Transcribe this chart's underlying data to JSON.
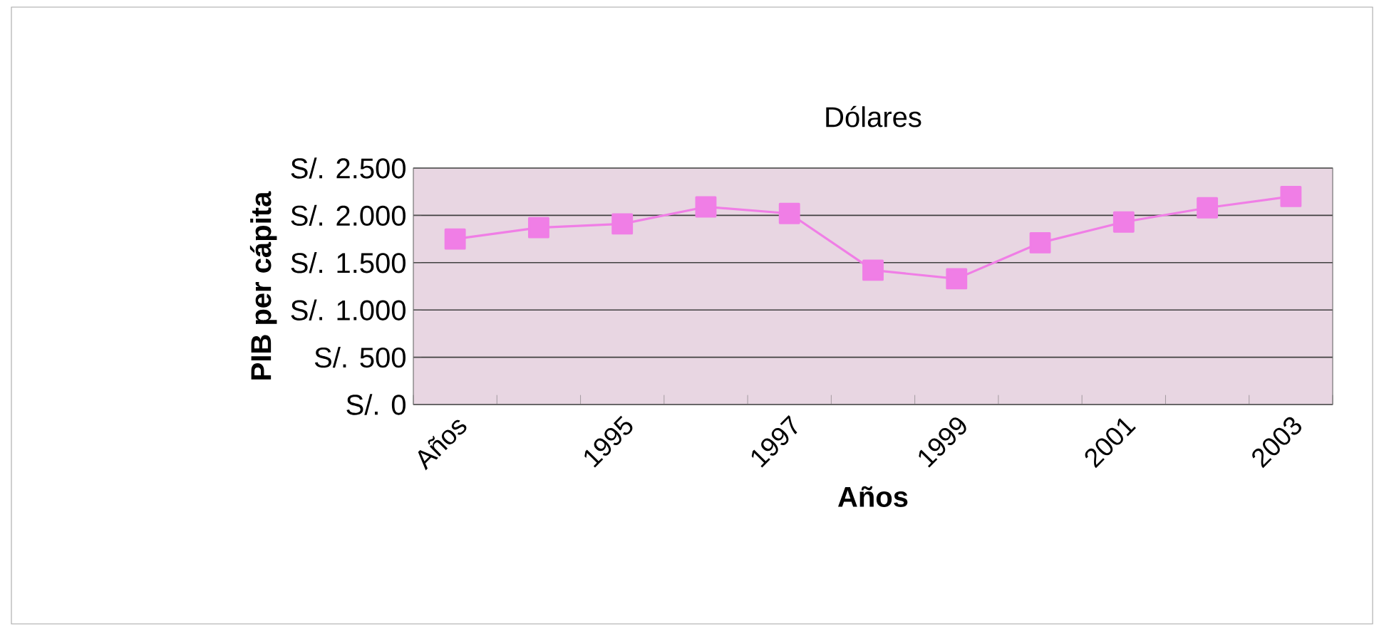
{
  "chart_data": {
    "type": "line",
    "title": "Dólares",
    "xlabel": "Años",
    "ylabel": "PIB per cápita",
    "categories": [
      "Años",
      null,
      "1995",
      null,
      "1997",
      null,
      "1999",
      null,
      "2001",
      null,
      "2003"
    ],
    "series": [
      {
        "color": "#f07ee6",
        "values": [
          1750,
          1870,
          1910,
          2090,
          2020,
          1420,
          1330,
          1710,
          1930,
          2080,
          2200
        ]
      }
    ],
    "ylim": [
      0,
      2500
    ],
    "yticks": [
      {
        "value": 0,
        "label": "S/. 0"
      },
      {
        "value": 500,
        "label": "S/. 500"
      },
      {
        "value": 1000,
        "label": "S/. 1.000"
      },
      {
        "value": 1500,
        "label": "S/. 1.500"
      },
      {
        "value": 2000,
        "label": "S/. 2.000"
      },
      {
        "value": 2500,
        "label": "S/. 2.500"
      }
    ],
    "grid": "y",
    "marker": "square"
  }
}
